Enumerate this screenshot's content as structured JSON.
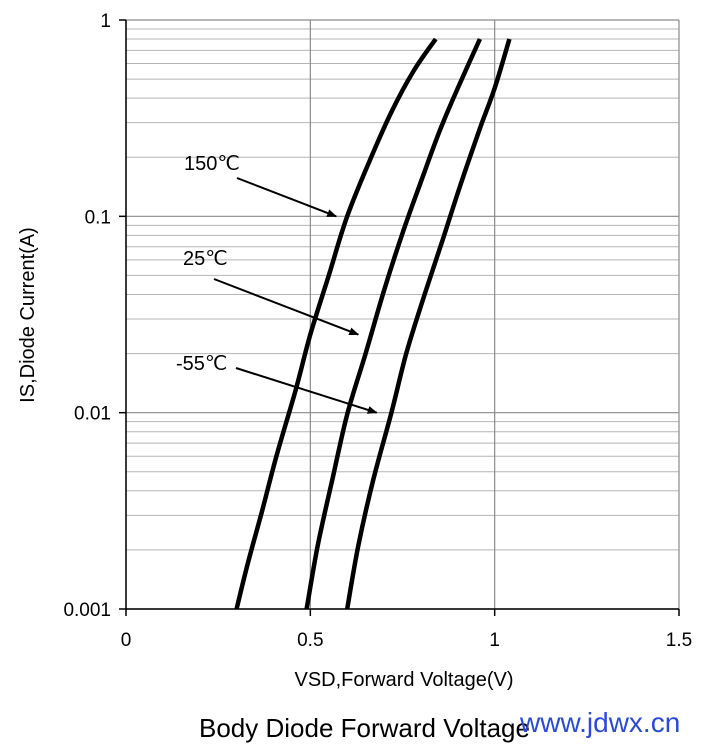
{
  "caption": "Body Diode Forward Voltage",
  "watermark": "www.jdwx.cn",
  "chart_data": {
    "type": "line",
    "xlabel": "VSD,Forward Voltage(V)",
    "ylabel": "IS,Diode Current(A)",
    "xlim": [
      0,
      1.5
    ],
    "ylim": [
      0.001,
      1
    ],
    "yscale": "log",
    "x_ticks": [
      "0",
      "0.5",
      "1",
      "1.5"
    ],
    "y_ticks": [
      "0.001",
      "0.01",
      "0.1",
      "1"
    ],
    "grid": true,
    "series": [
      {
        "name": "150℃",
        "x": [
          0.3,
          0.33,
          0.37,
          0.41,
          0.46,
          0.5,
          0.55,
          0.6,
          0.66,
          0.72,
          0.78,
          0.84
        ],
        "y": [
          0.001,
          0.0017,
          0.0032,
          0.0062,
          0.013,
          0.025,
          0.05,
          0.1,
          0.19,
          0.34,
          0.55,
          0.8
        ]
      },
      {
        "name": "25℃",
        "x": [
          0.49,
          0.52,
          0.56,
          0.6,
          0.65,
          0.7,
          0.75,
          0.8,
          0.85,
          0.9,
          0.96
        ],
        "y": [
          0.001,
          0.0021,
          0.0046,
          0.0098,
          0.02,
          0.042,
          0.082,
          0.15,
          0.27,
          0.45,
          0.8
        ]
      },
      {
        "name": "-55℃",
        "x": [
          0.6,
          0.63,
          0.67,
          0.72,
          0.76,
          0.81,
          0.86,
          0.91,
          0.96,
          1.0,
          1.04
        ],
        "y": [
          0.001,
          0.0021,
          0.0045,
          0.01,
          0.02,
          0.04,
          0.077,
          0.15,
          0.28,
          0.45,
          0.8
        ]
      }
    ],
    "annotations": [
      {
        "text": "150℃",
        "target_x": 0.57,
        "target_y": 0.1
      },
      {
        "text": "25℃",
        "target_x": 0.63,
        "target_y": 0.025
      },
      {
        "text": "-55℃",
        "target_x": 0.68,
        "target_y": 0.01
      }
    ]
  }
}
